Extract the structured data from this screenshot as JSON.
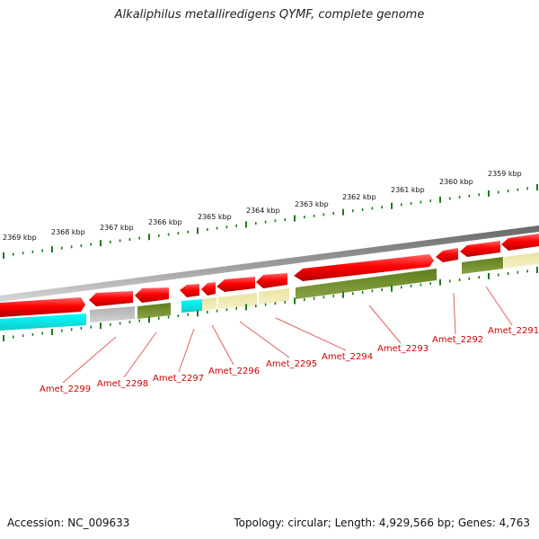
{
  "title": "Alkaliphilus metalliredigens QYMF, complete genome",
  "accession": "Accession: NC_009633",
  "summary": "Topology: circular; Length: 4,929,566 bp; Genes: 4,763",
  "colors": {
    "forward_gene": "#ff0000",
    "backbone": "#888888",
    "tick": "#1e7a1e",
    "label": "#cc0000",
    "cyan": "#22e5e5",
    "gray": "#b4b4b4",
    "olive": "#6b8e23",
    "khaki": "#eee8aa"
  },
  "kbp_labels": [
    "2369 kbp",
    "2368 kbp",
    "2367 kbp",
    "2366 kbp",
    "2365 kbp",
    "2364 kbp",
    "2363 kbp",
    "2362 kbp",
    "2361 kbp",
    "2360 kbp",
    "2359 kbp"
  ],
  "gene_labels": [
    "Amet_2299",
    "Amet_2298",
    "Amet_2297",
    "Amet_2296",
    "Amet_2295",
    "Amet_2294",
    "Amet_2293",
    "Amet_2292",
    "Amet_2291"
  ]
}
